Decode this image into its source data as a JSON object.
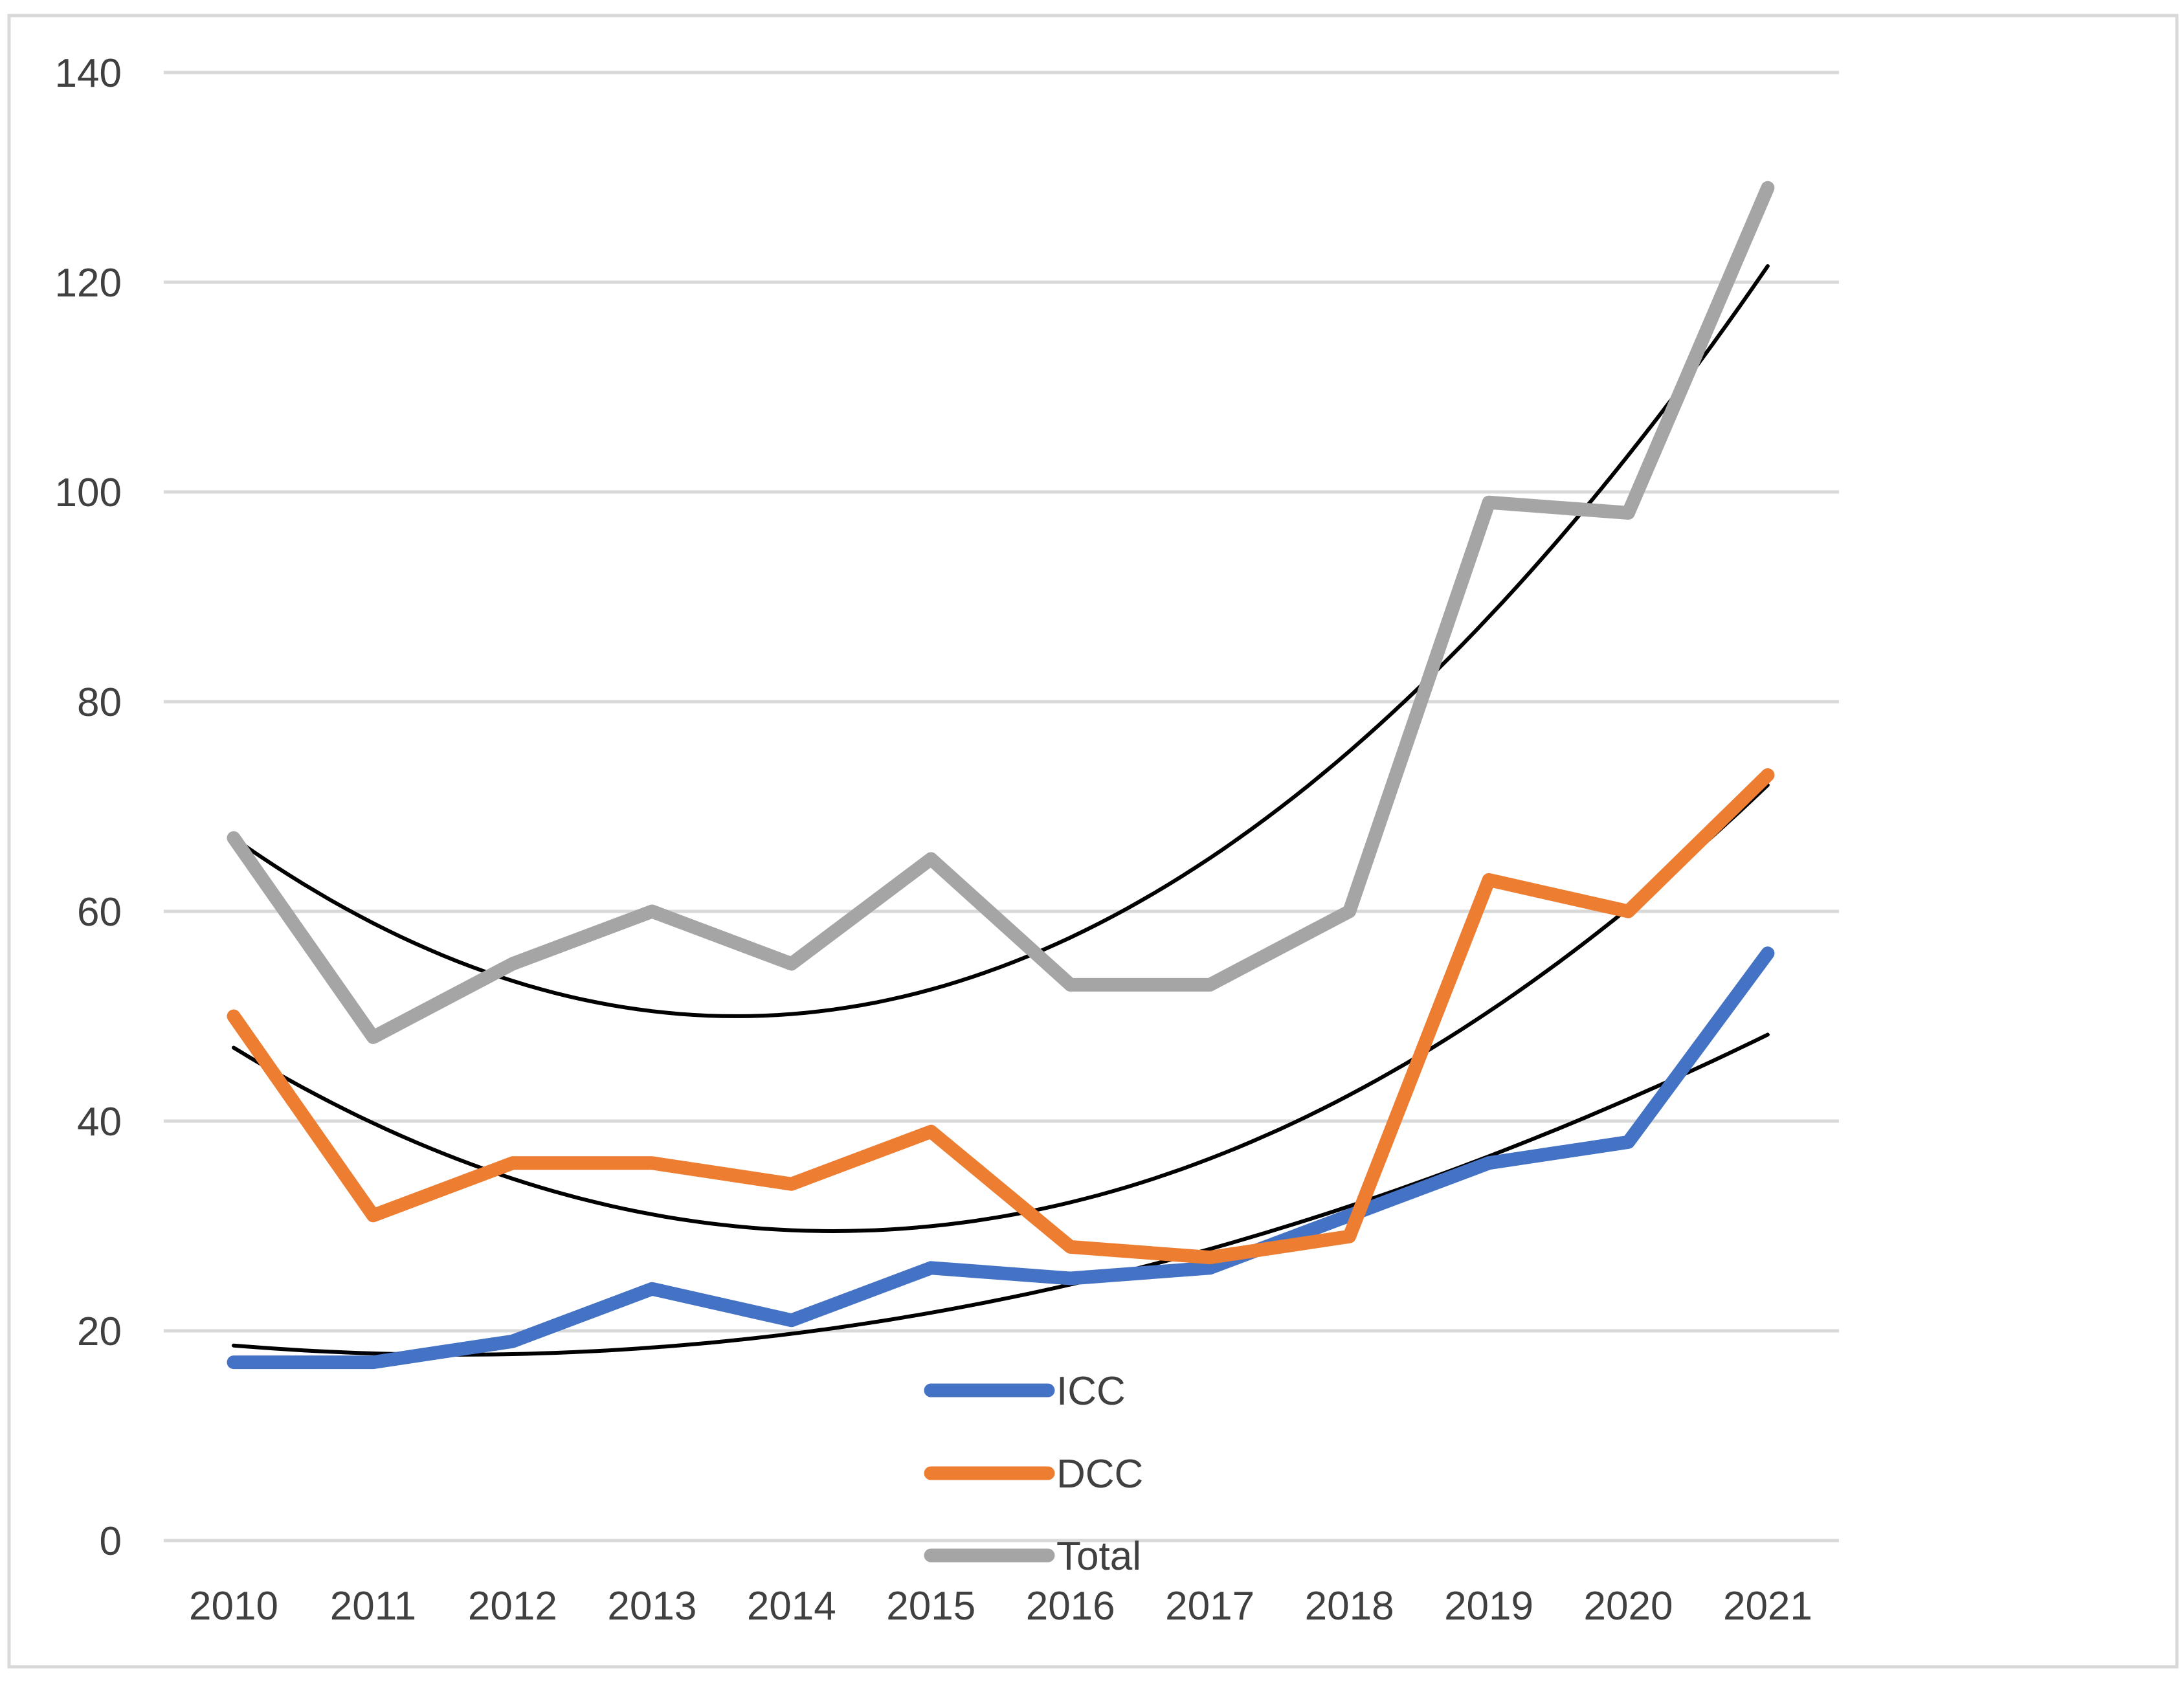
{
  "chart_data": {
    "type": "line",
    "title": "",
    "categories": [
      "2010",
      "2011",
      "2012",
      "2013",
      "2014",
      "2015",
      "2016",
      "2017",
      "2018",
      "2019",
      "2020",
      "2021"
    ],
    "series": [
      {
        "name": "ICC",
        "color": "#4472C4",
        "values": [
          17,
          17,
          19,
          24,
          21,
          26,
          25,
          26,
          31,
          36,
          38,
          56
        ]
      },
      {
        "name": "DCC",
        "color": "#ED7D31",
        "values": [
          50,
          31,
          36,
          36,
          34,
          39,
          28,
          27,
          29,
          63,
          60,
          73
        ]
      },
      {
        "name": "Total",
        "color": "#A5A5A5",
        "values": [
          67,
          48,
          55,
          60,
          55,
          65,
          53,
          53,
          60,
          99,
          98,
          129
        ]
      }
    ],
    "trendlines": [
      {
        "series": "ICC",
        "type": "polynomial-2",
        "color": "#000000",
        "coeffs": {
          "a": 0.345,
          "b": -1.1,
          "c": 18.6
        }
      },
      {
        "series": "DCC",
        "type": "polynomial-2",
        "color": "#000000",
        "coeffs": {
          "a": 0.947,
          "b": -8.14,
          "c": 47.0
        }
      },
      {
        "series": "Total",
        "type": "polynomial-2",
        "color": "#000000",
        "coeffs": {
          "a": 1.308,
          "b": -9.43,
          "c": 67.0
        }
      }
    ],
    "y_axis": {
      "min": 0,
      "max": 140,
      "step": 20,
      "tick_labels": [
        "0",
        "20",
        "40",
        "60",
        "80",
        "100",
        "120",
        "140"
      ]
    },
    "x_axis": {
      "tick_labels": [
        "2010",
        "2011",
        "2012",
        "2013",
        "2014",
        "2015",
        "2016",
        "2017",
        "2018",
        "2019",
        "2020",
        "2021"
      ]
    },
    "legend": {
      "position": "inside-bottom-center",
      "entries": [
        "ICC",
        "DCC",
        "Total"
      ]
    },
    "grid": true,
    "styles": {
      "background": "#FFFFFF",
      "gridline_color": "#D9D9D9",
      "frame_color": "#D9D9D9",
      "text_color": "#404040",
      "trendline_color": "#000000"
    }
  }
}
